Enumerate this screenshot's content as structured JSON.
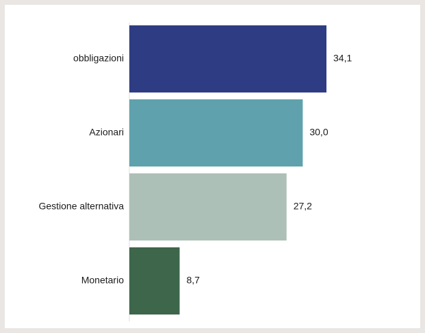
{
  "chart_data": {
    "type": "bar",
    "orientation": "horizontal",
    "categories": [
      "obbligazioni",
      "Azionari",
      "Gestione alternativa",
      "Monetario"
    ],
    "values": [
      34.1,
      30.0,
      27.2,
      8.7
    ],
    "value_labels": [
      "34,1",
      "30,0",
      "27,2",
      "8,7"
    ],
    "colors": [
      "#2e3d83",
      "#5fa2ad",
      "#adc0b7",
      "#3d664a"
    ],
    "title": "",
    "xlabel": "",
    "ylabel": "",
    "xlim": [
      0,
      40
    ],
    "grid": false,
    "legend": "none"
  }
}
